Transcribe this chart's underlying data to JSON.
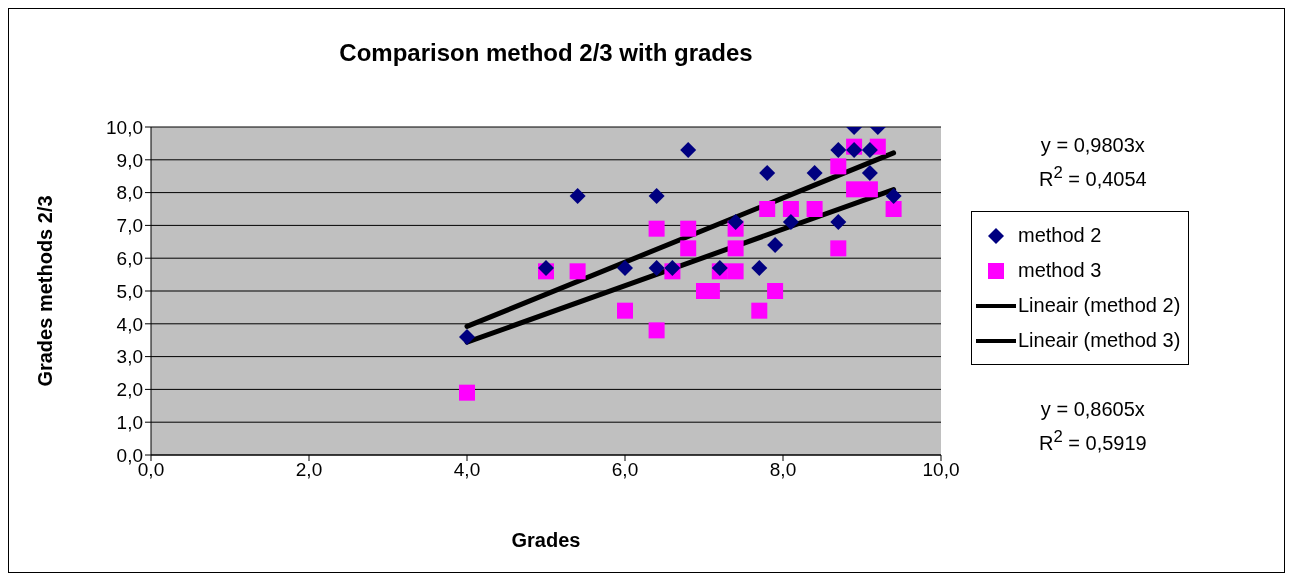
{
  "chart_data": {
    "type": "scatter",
    "title": "Comparison method 2/3 with grades",
    "xlabel": "Grades",
    "ylabel": "Grades methods 2/3",
    "xlim": [
      0,
      10
    ],
    "xticks": [
      {
        "value": 0,
        "label": "0,0"
      },
      {
        "value": 2,
        "label": "2,0"
      },
      {
        "value": 4,
        "label": "4,0"
      },
      {
        "value": 6,
        "label": "6,0"
      },
      {
        "value": 8,
        "label": "8,0"
      },
      {
        "value": 10,
        "label": "10,0"
      }
    ],
    "ylim": [
      0,
      10
    ],
    "yticks": [
      {
        "value": 0,
        "label": "0,0"
      },
      {
        "value": 1,
        "label": "1,0"
      },
      {
        "value": 2,
        "label": "2,0"
      },
      {
        "value": 3,
        "label": "3,0"
      },
      {
        "value": 4,
        "label": "4,0"
      },
      {
        "value": 5,
        "label": "5,0"
      },
      {
        "value": 6,
        "label": "6,0"
      },
      {
        "value": 7,
        "label": "7,0"
      },
      {
        "value": 8,
        "label": "8,0"
      },
      {
        "value": 9,
        "label": "9,0"
      },
      {
        "value": 10,
        "label": "10,0"
      }
    ],
    "grid": "y",
    "legend": "right",
    "series": [
      {
        "name": "method 2",
        "type": "scatter",
        "marker": "diamond",
        "color": "#000080",
        "x": [
          4.0,
          5.0,
          5.4,
          6.0,
          6.4,
          6.4,
          6.6,
          6.8,
          7.2,
          7.4,
          7.7,
          7.8,
          7.9,
          8.1,
          8.4,
          8.7,
          8.7,
          8.9,
          8.9,
          9.1,
          9.1,
          9.2,
          9.4
        ],
        "values": [
          3.6,
          5.7,
          7.9,
          5.7,
          7.9,
          5.7,
          5.7,
          9.3,
          5.7,
          7.1,
          5.7,
          8.6,
          6.4,
          7.1,
          8.6,
          9.3,
          7.1,
          10.0,
          9.3,
          9.3,
          8.6,
          10.0,
          7.9
        ]
      },
      {
        "name": "method 3",
        "type": "scatter",
        "marker": "square",
        "color": "#ff00ff",
        "x": [
          4.0,
          5.0,
          5.4,
          6.0,
          6.4,
          6.4,
          6.6,
          6.8,
          6.8,
          7.0,
          7.1,
          7.2,
          7.4,
          7.4,
          7.4,
          7.7,
          7.8,
          7.9,
          8.1,
          8.4,
          8.7,
          8.7,
          8.9,
          8.9,
          9.1,
          9.2,
          9.4
        ],
        "values": [
          1.9,
          5.6,
          5.6,
          4.4,
          6.9,
          3.8,
          5.6,
          6.9,
          6.3,
          5.0,
          5.0,
          5.6,
          5.6,
          6.3,
          6.9,
          4.4,
          7.5,
          5.0,
          7.5,
          7.5,
          8.8,
          6.3,
          9.4,
          8.1,
          8.1,
          9.4,
          7.5
        ]
      },
      {
        "name": "Lineair (method 2)",
        "type": "line",
        "marker": "none",
        "color": "#000000",
        "x": [
          4.0,
          9.4
        ],
        "values": [
          3.92,
          9.21
        ]
      },
      {
        "name": "Lineair (method 3)",
        "type": "line",
        "marker": "none",
        "color": "#000000",
        "x": [
          4.0,
          9.4
        ],
        "values": [
          3.44,
          8.09
        ]
      }
    ],
    "annotations": [
      "y = 0,9803x\nR$^{2}$ = 0,4054",
      "y = 0,8605x\nR$^{2}$ = 0,5919"
    ]
  }
}
